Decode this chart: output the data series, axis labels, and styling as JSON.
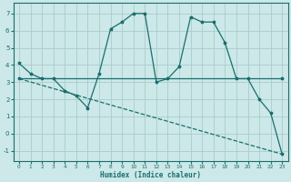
{
  "xlabel": "Humidex (Indice chaleur)",
  "bg_color": "#cce8e8",
  "grid_color": "#aacccc",
  "line_color": "#1a6e6e",
  "xlim": [
    -0.5,
    23.5
  ],
  "ylim": [
    -1.6,
    7.6
  ],
  "xticks": [
    0,
    1,
    2,
    3,
    4,
    5,
    6,
    7,
    8,
    9,
    10,
    11,
    12,
    13,
    14,
    15,
    16,
    17,
    18,
    19,
    20,
    21,
    22,
    23
  ],
  "yticks": [
    -1,
    0,
    1,
    2,
    3,
    4,
    5,
    6,
    7
  ],
  "line1_x": [
    0,
    1,
    2,
    3,
    4,
    5,
    6,
    7,
    8,
    9,
    10,
    11,
    12,
    13,
    14,
    15,
    16,
    17,
    18,
    19,
    20,
    21,
    22,
    23
  ],
  "line1_y": [
    4.1,
    3.5,
    3.2,
    3.2,
    2.5,
    2.2,
    1.5,
    3.5,
    6.1,
    6.5,
    7.0,
    7.0,
    3.0,
    3.2,
    3.9,
    6.8,
    6.5,
    6.5,
    5.3,
    3.2,
    3.2,
    2.0,
    1.2,
    -1.2
  ],
  "line2_x": [
    0,
    23
  ],
  "line2_y": [
    3.2,
    3.2
  ],
  "line3_x": [
    0,
    23
  ],
  "line3_y": [
    3.2,
    -1.2
  ]
}
